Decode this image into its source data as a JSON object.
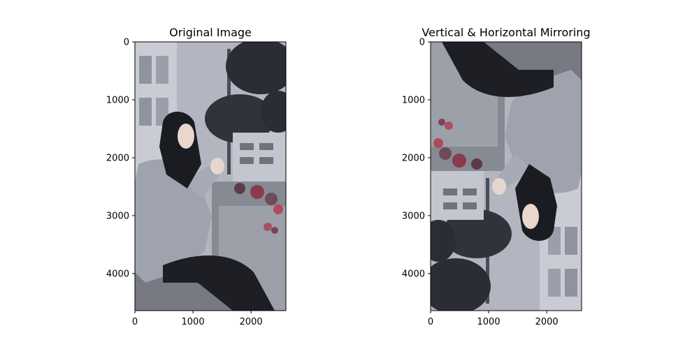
{
  "figure": {
    "background": "#ffffff"
  },
  "chart_data": [
    {
      "type": "image",
      "title": "Original Image",
      "xlim": [
        0,
        2600
      ],
      "ylim": [
        4640,
        0
      ],
      "xticks": [
        0,
        1000,
        2000
      ],
      "yticks": [
        0,
        1000,
        2000,
        3000,
        4000
      ],
      "image_orientation": "original",
      "image_description_colors": {
        "sky": "#b9bcc6",
        "coat": "#9ea3ad",
        "hijab": "#1b1c22",
        "bench": "#777a82",
        "trees": "#2a2d33"
      }
    },
    {
      "type": "image",
      "title": "Vertical & Horizontal Mirroring",
      "xlim": [
        0,
        2600
      ],
      "ylim": [
        4640,
        0
      ],
      "xticks": [
        0,
        1000,
        2000
      ],
      "yticks": [
        0,
        1000,
        2000,
        3000,
        4000
      ],
      "image_orientation": "rotated-180",
      "image_description_colors": {
        "sky": "#b9bcc6",
        "coat": "#9ea3ad",
        "hijab": "#1b1c22",
        "bench": "#777a82",
        "trees": "#2a2d33"
      }
    }
  ]
}
